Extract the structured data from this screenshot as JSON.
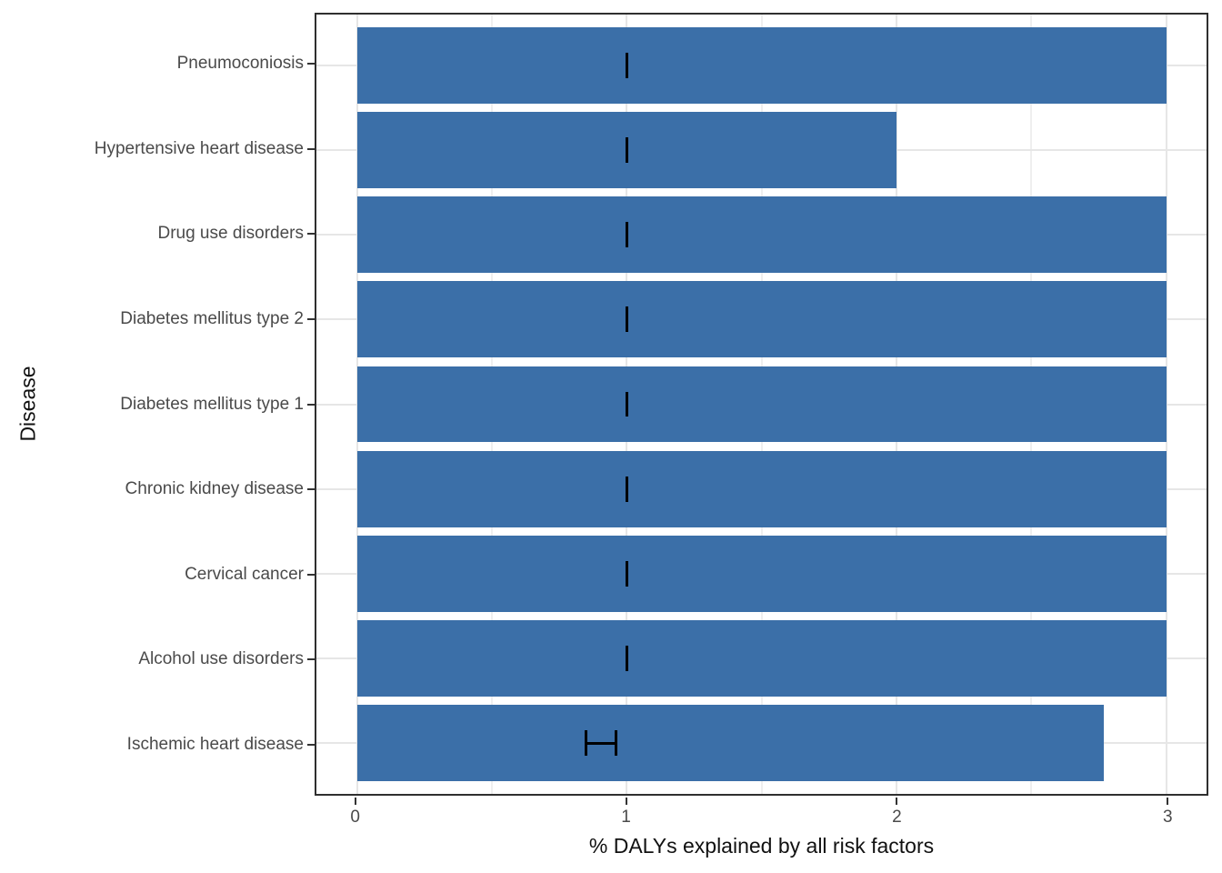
{
  "chart_data": {
    "type": "bar",
    "orientation": "horizontal",
    "title": "",
    "xlabel": "% DALYs explained by all risk factors",
    "ylabel": "Disease",
    "categories": [
      "Pneumoconiosis",
      "Hypertensive heart disease",
      "Drug use disorders",
      "Diabetes mellitus type 2",
      "Diabetes mellitus type 1",
      "Chronic kidney disease",
      "Cervical cancer",
      "Alcohol use disorders",
      "Ischemic heart disease"
    ],
    "values": [
      3.0,
      2.0,
      3.0,
      3.0,
      3.0,
      3.0,
      3.0,
      3.0,
      2.77
    ],
    "error_bars": [
      {
        "low": 1.0,
        "high": 1.0
      },
      {
        "low": 1.0,
        "high": 1.0
      },
      {
        "low": 1.0,
        "high": 1.0
      },
      {
        "low": 1.0,
        "high": 1.0
      },
      {
        "low": 1.0,
        "high": 1.0
      },
      {
        "low": 1.0,
        "high": 1.0
      },
      {
        "low": 1.0,
        "high": 1.0
      },
      {
        "low": 1.0,
        "high": 1.0
      },
      {
        "low": 0.85,
        "high": 0.96
      }
    ],
    "x_tick_labels": [
      "0",
      "1",
      "2",
      "3"
    ],
    "x_tick_values": [
      0,
      1,
      2,
      3
    ],
    "x_minor_tick_values": [
      0.5,
      1.5,
      2.5
    ],
    "xlim": [
      -0.15,
      3.15
    ],
    "bar_width": 0.9,
    "grid": true,
    "legend": false,
    "colors": {
      "bar": "#3B6FA8",
      "error_bar": "#000000",
      "grid_major": "#e6e6e6",
      "grid_minor": "#efefef",
      "panel_border": "#2f2f2f",
      "tick_mark": "#333333",
      "axis_text": "#4a4a4a",
      "axis_title": "#111111"
    }
  }
}
